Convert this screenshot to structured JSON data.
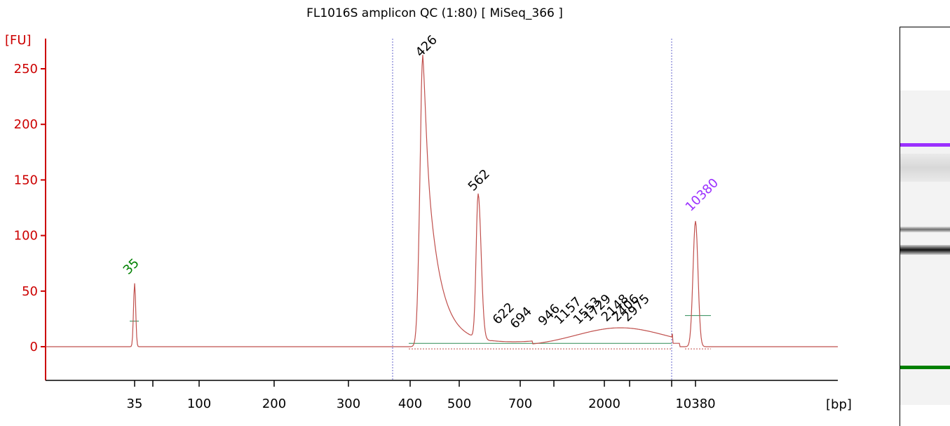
{
  "chart_data": {
    "type": "line",
    "title": "FL1016S amplicon QC (1:80)  [ MiSeq_366 ]",
    "ylabel": "[FU]",
    "xlabel": "[bp]",
    "ylim": [
      -28,
      280
    ],
    "yticks": [
      0,
      50,
      100,
      150,
      200,
      250
    ],
    "xticks": [
      "35",
      "100",
      "200",
      "300",
      "400",
      "500",
      "700",
      "2000",
      "10380"
    ],
    "series_color": "#c0504d",
    "peaks": [
      {
        "label": "35",
        "size_bp": 35,
        "height": 57,
        "color": "#008000"
      },
      {
        "label": "426",
        "size_bp": 426,
        "height": 253,
        "color": "#000000"
      },
      {
        "label": "562",
        "size_bp": 562,
        "height": 130,
        "color": "#000000"
      },
      {
        "label": "622",
        "size_bp": 622,
        "height": 13,
        "color": "#000000"
      },
      {
        "label": "694",
        "size_bp": 694,
        "height": 11,
        "color": "#000000"
      },
      {
        "label": "946",
        "size_bp": 946,
        "height": 12,
        "color": "#000000"
      },
      {
        "label": "1157",
        "size_bp": 1157,
        "height": 13,
        "color": "#000000"
      },
      {
        "label": "1553",
        "size_bp": 1553,
        "height": 15,
        "color": "#000000"
      },
      {
        "label": "1729",
        "size_bp": 1729,
        "height": 16,
        "color": "#000000"
      },
      {
        "label": "2148",
        "size_bp": 2148,
        "height": 18,
        "color": "#000000"
      },
      {
        "label": "2406",
        "size_bp": 2406,
        "height": 18,
        "color": "#000000"
      },
      {
        "label": "2975",
        "size_bp": 2975,
        "height": 17,
        "color": "#000000"
      },
      {
        "label": "10380",
        "size_bp": 10380,
        "height": 113,
        "color": "#9b30ff"
      }
    ],
    "gel": {
      "upper_marker_color": "#9b30ff",
      "lower_marker_color": "#008000"
    }
  }
}
